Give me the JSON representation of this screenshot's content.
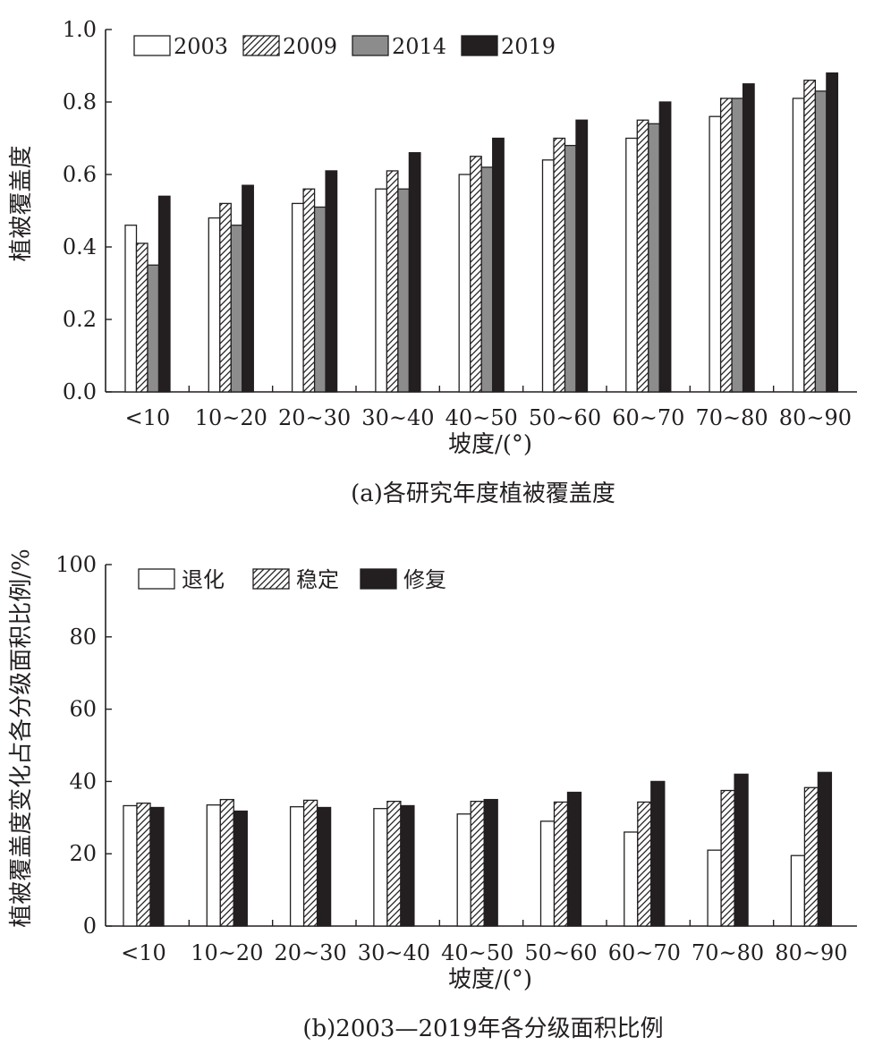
{
  "colors": {
    "ink": "#231f20",
    "white": "#ffffff",
    "gray": "#8c8c8c",
    "dark": "#231f20"
  },
  "chart_data": [
    {
      "type": "bar",
      "caption": "(a)各研究年度植被覆盖度",
      "xlabel": "坡度/(°)",
      "ylabel": "植被覆盖度",
      "ylim": [
        0,
        1.0
      ],
      "yticks": [
        "0.0",
        "0.2",
        "0.4",
        "0.6",
        "0.8",
        "1.0"
      ],
      "ytick_values": [
        0,
        0.2,
        0.4,
        0.6,
        0.8,
        1.0
      ],
      "categories": [
        "<10",
        "10~20",
        "20~30",
        "30~40",
        "40~50",
        "50~60",
        "60~70",
        "70~80",
        "80~90"
      ],
      "legend_position": "top-left",
      "series": [
        {
          "name": "2003",
          "style": "white",
          "values": [
            0.46,
            0.48,
            0.52,
            0.56,
            0.6,
            0.64,
            0.7,
            0.76,
            0.81
          ]
        },
        {
          "name": "2009",
          "style": "hatch",
          "values": [
            0.41,
            0.52,
            0.56,
            0.61,
            0.65,
            0.7,
            0.75,
            0.81,
            0.86
          ]
        },
        {
          "name": "2014",
          "style": "gray",
          "values": [
            0.35,
            0.46,
            0.51,
            0.56,
            0.62,
            0.68,
            0.74,
            0.81,
            0.83
          ]
        },
        {
          "name": "2019",
          "style": "dark",
          "values": [
            0.54,
            0.57,
            0.61,
            0.66,
            0.7,
            0.75,
            0.8,
            0.85,
            0.88
          ]
        }
      ]
    },
    {
      "type": "bar",
      "caption": "(b)2003—2019年各分级面积比例",
      "xlabel": "坡度/(°)",
      "ylabel": "植被覆盖度变化占各分级面积比例/%",
      "ylim": [
        0,
        100
      ],
      "yticks": [
        "0",
        "20",
        "40",
        "60",
        "80",
        "100"
      ],
      "ytick_values": [
        0,
        20,
        40,
        60,
        80,
        100
      ],
      "categories": [
        "<10",
        "10~20",
        "20~30",
        "30~40",
        "40~50",
        "50~60",
        "60~70",
        "70~80",
        "80~90"
      ],
      "legend_position": "top-left",
      "series": [
        {
          "name": "退化",
          "style": "white",
          "values": [
            33.3,
            33.5,
            33.0,
            32.5,
            31.0,
            29.0,
            26.0,
            21.0,
            19.5
          ]
        },
        {
          "name": "稳定",
          "style": "hatch",
          "values": [
            34.0,
            35.0,
            34.8,
            34.5,
            34.5,
            34.3,
            34.3,
            37.5,
            38.3
          ]
        },
        {
          "name": "修复",
          "style": "dark",
          "values": [
            32.8,
            31.8,
            32.8,
            33.3,
            35.0,
            37.0,
            40.0,
            42.0,
            42.5
          ]
        }
      ]
    }
  ]
}
